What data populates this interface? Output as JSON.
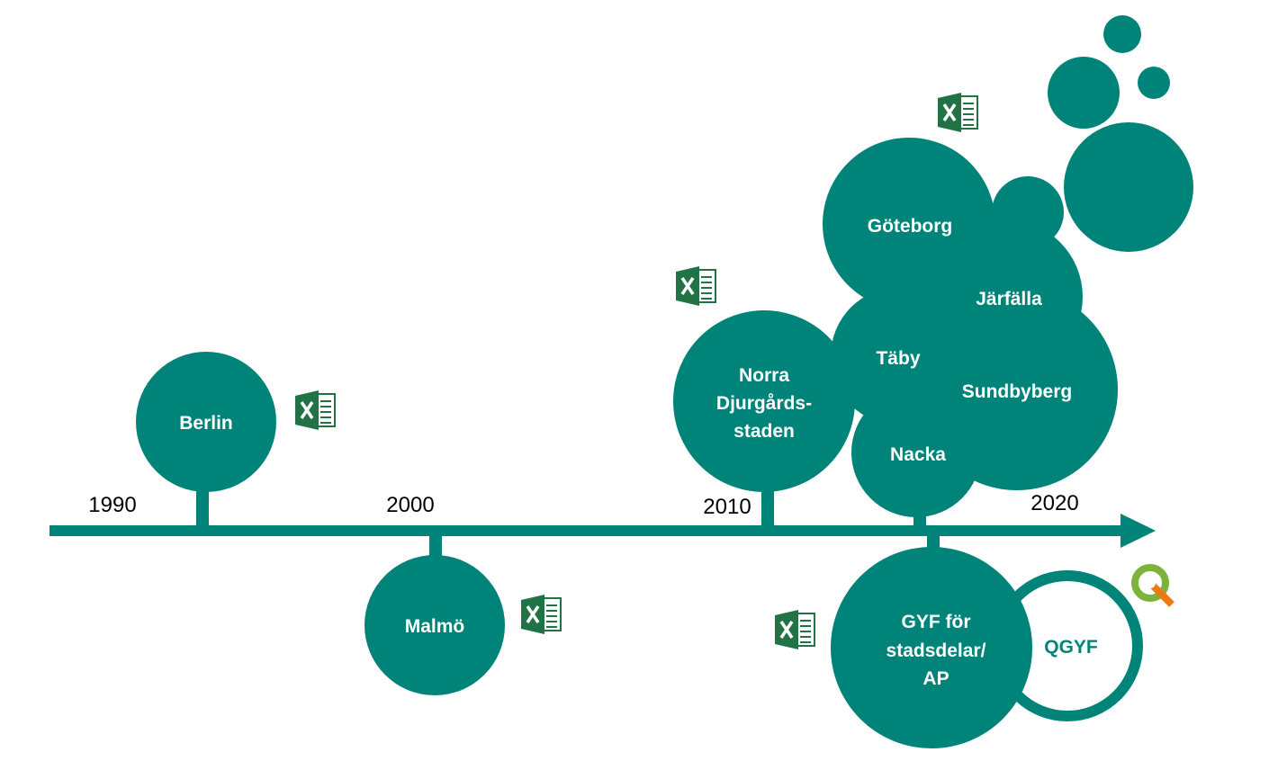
{
  "timeline": {
    "years": [
      "1990",
      "2000",
      "2010",
      "2020"
    ]
  },
  "nodes": [
    {
      "lines": [
        "Berlin"
      ]
    },
    {
      "lines": [
        "Malmö"
      ]
    },
    {
      "lines": [
        "Norra",
        "Djurgårds-",
        "staden"
      ]
    },
    {
      "lines": [
        "Göteborg"
      ]
    },
    {
      "lines": [
        "Järfälla"
      ]
    },
    {
      "lines": [
        "Täby"
      ]
    },
    {
      "lines": [
        "Sundbyberg"
      ]
    },
    {
      "lines": [
        "Nacka"
      ]
    },
    {
      "lines": [
        "GYF för",
        "stadsdelar/",
        "AP"
      ]
    },
    {
      "lines": [
        "QGYF"
      ]
    }
  ]
}
